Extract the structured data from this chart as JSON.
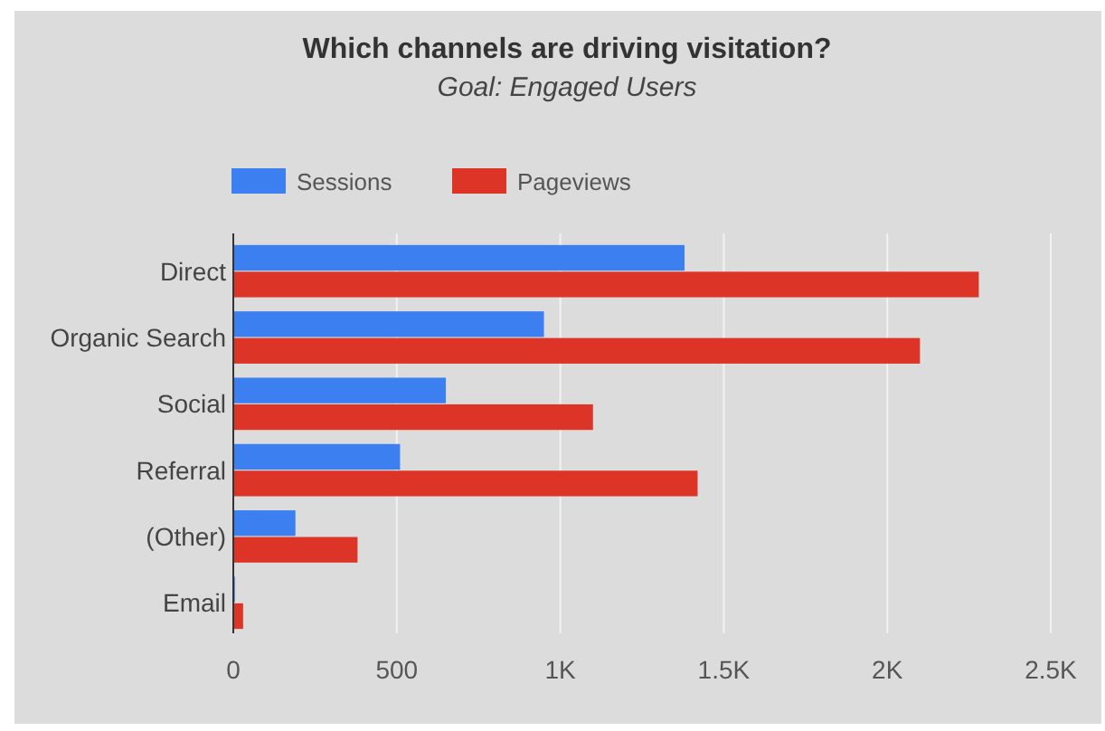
{
  "chart_data": {
    "type": "bar",
    "orientation": "horizontal",
    "title": "Which channels are driving visitation?",
    "subtitle": "Goal: Engaged Users",
    "categories": [
      "Direct",
      "Organic Search",
      "Social",
      "Referral",
      "(Other)",
      "Email"
    ],
    "series": [
      {
        "name": "Sessions",
        "color": "#3b7ff0",
        "values": [
          1380,
          950,
          650,
          510,
          190,
          5
        ]
      },
      {
        "name": "Pageviews",
        "color": "#dc3528",
        "values": [
          2280,
          2100,
          1100,
          1420,
          380,
          30
        ]
      }
    ],
    "xlim": [
      0,
      2500
    ],
    "xticks": [
      0,
      500,
      {
        "value": 1000,
        "label": "1K"
      },
      {
        "value": 1500,
        "label": "1.5K"
      },
      {
        "value": 2000,
        "label": "2K"
      },
      {
        "value": 2500,
        "label": "2.5K"
      }
    ],
    "grid": "x",
    "legend": "top"
  }
}
